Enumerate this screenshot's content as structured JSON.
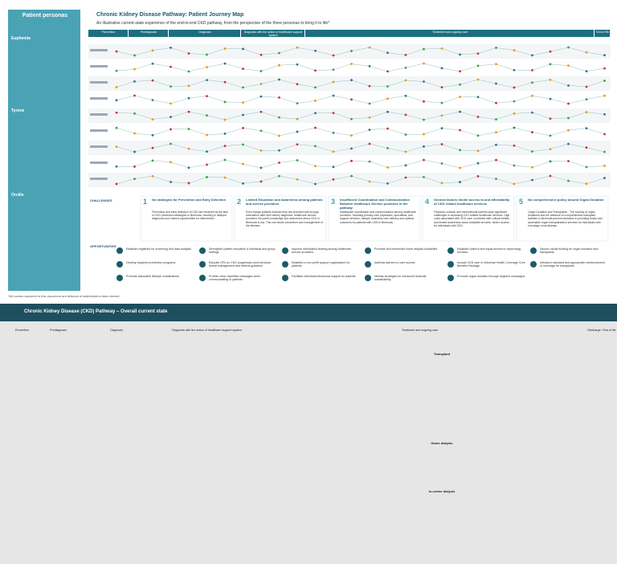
{
  "header": {
    "title": "Chronic Kidney Disease Pathway: Patient Journey Map",
    "subtitle": "An illustrative current-state experience of the end-to-end CKD pathway, from the perspective of the three personas to bring it to life*"
  },
  "personas": {
    "title": "Patient personas",
    "names": [
      "Euphemia",
      "Tyrone",
      "Orville"
    ]
  },
  "phases": [
    "Prevention",
    "Prediagnosis",
    "Diagnosis",
    "Diagnosis with the action of healthcare support system",
    "Treatment and ongoing care",
    "End of life"
  ],
  "challenges": {
    "label": "CHALLENGES",
    "items": [
      {
        "number": "1",
        "title": "No strategies for Prevention and Early Detection",
        "text": "Prevention and early detection of CKD are hindered by the lack of CKD prevention strategies in Bermuda, resulting in delayed diagnoses and missed opportunities for intervention."
      },
      {
        "number": "2",
        "title": "Limited Education and Awareness among patients and service providers",
        "text": "Even though patients indicate they are provided with enough information after their kidney diagnosis, healthcare service providers the public knowledge and awareness about CKD in Bermuda is low. This can hinder prevention and management of the disease."
      },
      {
        "number": "3",
        "title": "Insufficient Coordination and Communication Between Healthcare Service providers in the pathway",
        "text": "Inadequate coordination and communication among healthcare providers, including primary care physicians, specialists, and support services, hamper seamless care delivery and optimal outcomes for patients with CKD in Bermuda."
      },
      {
        "number": "4",
        "title": "General factors hinder access to and affordability of CKD related healthcare services",
        "text": "Financial, cultural, and informational barriers pose significant challenges in accessing CKD related healthcare services. High costs associated with CKD care, combined with cultural beliefs and limited awareness about available services, hinder access for individuals with CKD."
      },
      {
        "number": "5",
        "title": "No comprehensive policy around Organ Donation",
        "text": "Organ Donation and Transplants - The scarcity of organ donations and the absence of comprehensive transplant facilities in Bermuda present obstacles in providing timely and accessible organ transplantation services for individuals with end-stage renal disease."
      }
    ]
  },
  "opportunities": {
    "label": "OPPORTUNITIES",
    "items": [
      "Establish registries for screening and data analysis",
      "Strengthen patient education & individual and group settings",
      "Improve information sharing among healthcare service providers",
      "Promote and incentivize home dialysis modalities",
      "Establish uniform and equal access to nephrology services",
      "Secure robust funding for organ donation and transplants",
      "Develop targeted prevention programs",
      "Educate GPs on CKD progression and introduce formal management and referral guidance",
      "Establish a non-profit support organization for patients",
      "Address barriers to care access",
      "Include CKD care in Universal Health Coverage Core Benefits Package",
      "Introduce standard and appropriate reimbursement or coverage for transplants",
      "Promote actionable lifestyle modifications",
      "Provide clear, repetitive messages when communicating to patients",
      "Facilitate individual behavioral support for patients",
      "Identify strategies for enhanced financial sustainability",
      "Promote organ donation through targeted campaigns"
    ]
  },
  "footnote": "*All names captured in this document are fictional of stakeholders data viewed.",
  "current_state": {
    "title": "Chronic Kidney Disease (CKD) Pathway – Overall current state",
    "phases": [
      "Prevention",
      "Prediagnosis",
      "Diagnosis",
      "Diagnosis with the action of healthcare support system",
      "Treatment and ongoing care",
      "Discharge / End of life"
    ],
    "sections": [
      "Transplant",
      "Home dialysis",
      "In-center dialysis"
    ]
  }
}
